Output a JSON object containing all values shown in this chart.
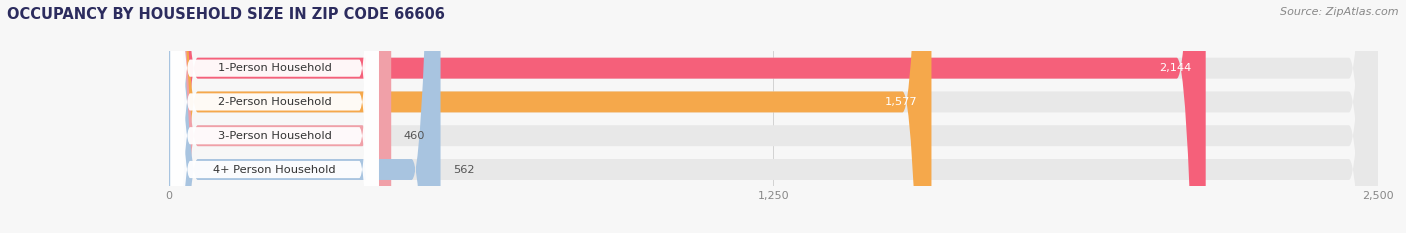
{
  "title": "OCCUPANCY BY HOUSEHOLD SIZE IN ZIP CODE 66606",
  "source": "Source: ZipAtlas.com",
  "categories": [
    "1-Person Household",
    "2-Person Household",
    "3-Person Household",
    "4+ Person Household"
  ],
  "values": [
    2144,
    1577,
    460,
    562
  ],
  "bar_colors": [
    "#F5607A",
    "#F5A84B",
    "#F0A0A8",
    "#A8C4E0"
  ],
  "xlim": [
    0,
    2500
  ],
  "xticks": [
    0,
    1250,
    2500
  ],
  "background_color": "#f7f7f7",
  "bar_background_color": "#e8e8e8",
  "title_fontsize": 10.5,
  "source_fontsize": 8,
  "bar_height": 0.62,
  "bar_gap": 0.08
}
